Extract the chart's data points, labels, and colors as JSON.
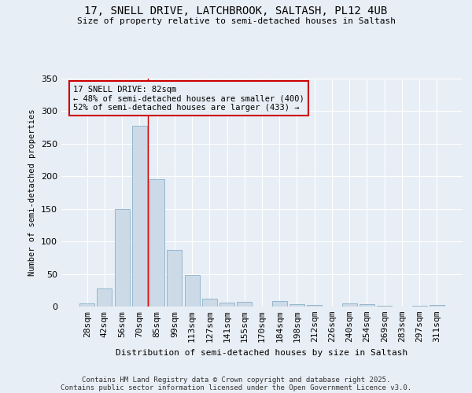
{
  "title_line1": "17, SNELL DRIVE, LATCHBROOK, SALTASH, PL12 4UB",
  "title_line2": "Size of property relative to semi-detached houses in Saltash",
  "xlabel": "Distribution of semi-detached houses by size in Saltash",
  "ylabel": "Number of semi-detached properties",
  "categories": [
    "28sqm",
    "42sqm",
    "56sqm",
    "70sqm",
    "85sqm",
    "99sqm",
    "113sqm",
    "127sqm",
    "141sqm",
    "155sqm",
    "170sqm",
    "184sqm",
    "198sqm",
    "212sqm",
    "226sqm",
    "240sqm",
    "254sqm",
    "269sqm",
    "283sqm",
    "297sqm",
    "311sqm"
  ],
  "values": [
    5,
    28,
    150,
    278,
    195,
    87,
    48,
    12,
    6,
    7,
    0,
    8,
    4,
    2,
    0,
    5,
    4,
    1,
    0,
    1,
    2
  ],
  "bar_color": "#ccdae8",
  "bar_edge_color": "#8aafc8",
  "ylim": [
    0,
    350
  ],
  "yticks": [
    0,
    50,
    100,
    150,
    200,
    250,
    300,
    350
  ],
  "vline_x": 3.5,
  "vline_color": "#cc0000",
  "annotation_text": "17 SNELL DRIVE: 82sqm\n← 48% of semi-detached houses are smaller (400)\n52% of semi-detached houses are larger (433) →",
  "annotation_box_color": "#cc0000",
  "background_color": "#e8eef5",
  "grid_color": "#ffffff",
  "footnote_line1": "Contains HM Land Registry data © Crown copyright and database right 2025.",
  "footnote_line2": "Contains public sector information licensed under the Open Government Licence v3.0."
}
